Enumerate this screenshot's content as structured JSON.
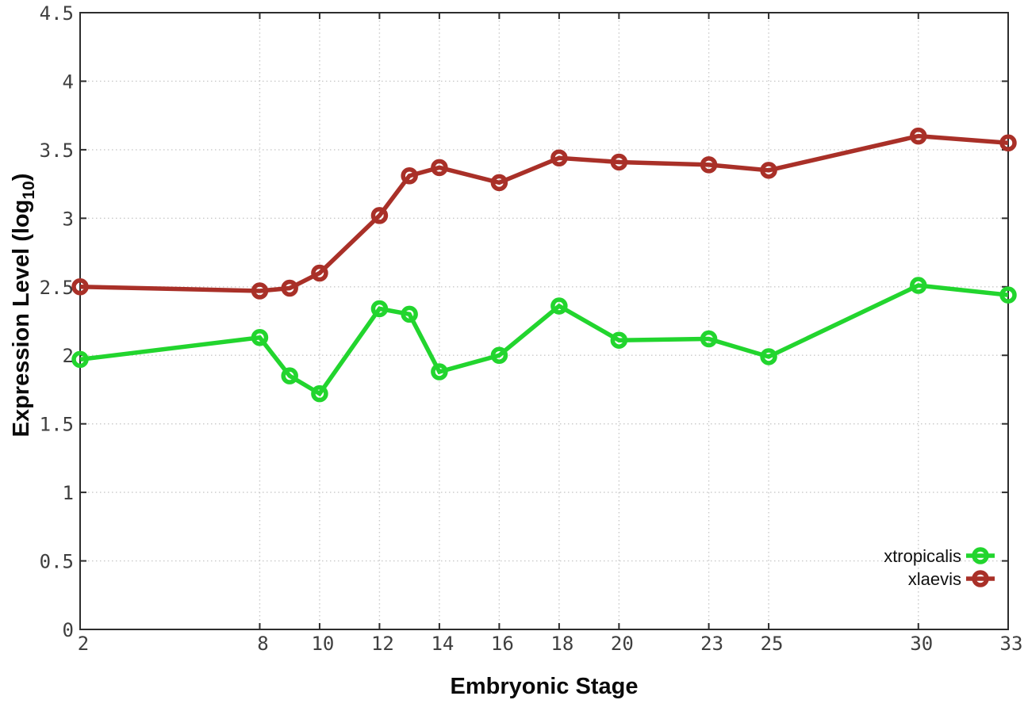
{
  "chart_data": {
    "type": "line",
    "title": "",
    "xlabel": "Embryonic Stage",
    "ylabel": "Expression Level (log10)",
    "ylabel_parts": {
      "pre": "Expression Level (log",
      "sub": "10",
      "post": ")"
    },
    "x": [
      2,
      8,
      9,
      10,
      12,
      13,
      14,
      16,
      18,
      20,
      23,
      25,
      30,
      33
    ],
    "xlim": [
      2,
      33
    ],
    "ylim": [
      0,
      4.5
    ],
    "xtick_values": [
      2,
      8,
      10,
      12,
      14,
      16,
      18,
      20,
      23,
      25,
      30,
      33
    ],
    "xtick_labels": [
      "2",
      "8",
      "10",
      "12",
      "14",
      "16",
      "18",
      "20",
      "23",
      "25",
      "30",
      "33"
    ],
    "ytick_values": [
      0,
      0.5,
      1,
      1.5,
      2,
      2.5,
      3,
      3.5,
      4,
      4.5
    ],
    "ytick_labels": [
      "0",
      "0.5",
      "1",
      "1.5",
      "2",
      "2.5",
      "3",
      "3.5",
      "4",
      "4.5"
    ],
    "grid": true,
    "legend_position": "inside-bottom-right",
    "series": [
      {
        "name": "xtropicalis",
        "color": "#22d52e",
        "marker": "open-circle",
        "values": [
          1.97,
          2.13,
          1.85,
          1.72,
          2.34,
          2.3,
          1.88,
          2.0,
          2.36,
          2.11,
          2.12,
          1.99,
          2.51,
          2.44
        ]
      },
      {
        "name": "xlaevis",
        "color": "#a93028",
        "marker": "open-circle",
        "values": [
          2.5,
          2.47,
          2.49,
          2.6,
          3.02,
          3.31,
          3.37,
          3.26,
          3.44,
          3.41,
          3.39,
          3.35,
          3.6,
          3.55
        ]
      }
    ],
    "colors": {
      "background": "#ffffff",
      "axis": "#2d2d2d",
      "grid": "#c9c9c9",
      "tick_label": "#3f3f3f"
    }
  }
}
